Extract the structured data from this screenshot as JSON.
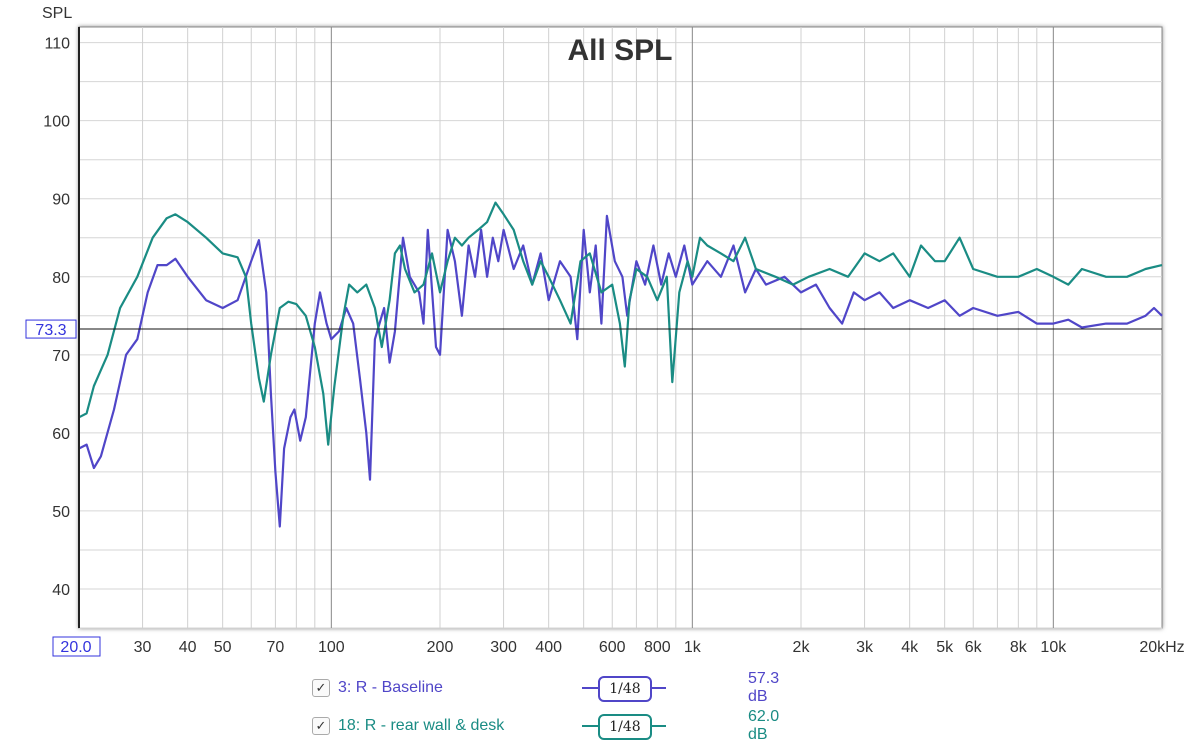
{
  "chart_data": {
    "type": "line",
    "title": "All SPL",
    "ylabel": "SPL",
    "xlabel": "",
    "xscale": "log",
    "xlim": [
      20,
      20000
    ],
    "ylim": [
      35,
      112
    ],
    "grid": true,
    "cursor": {
      "x_readout": "20.0",
      "y_readout": "73.3",
      "y_value": 73.3
    },
    "yticks": [
      40,
      50,
      60,
      70,
      80,
      90,
      100,
      110
    ],
    "xticks": [
      {
        "v": 30,
        "t": "30"
      },
      {
        "v": 40,
        "t": "40"
      },
      {
        "v": 50,
        "t": "50"
      },
      {
        "v": 70,
        "t": "70"
      },
      {
        "v": 100,
        "t": "100"
      },
      {
        "v": 200,
        "t": "200"
      },
      {
        "v": 300,
        "t": "300"
      },
      {
        "v": 400,
        "t": "400"
      },
      {
        "v": 600,
        "t": "600"
      },
      {
        "v": 800,
        "t": "800"
      },
      {
        "v": 1000,
        "t": "1k"
      },
      {
        "v": 2000,
        "t": "2k"
      },
      {
        "v": 3000,
        "t": "3k"
      },
      {
        "v": 4000,
        "t": "4k"
      },
      {
        "v": 5000,
        "t": "5k"
      },
      {
        "v": 6000,
        "t": "6k"
      },
      {
        "v": 8000,
        "t": "8k"
      },
      {
        "v": 10000,
        "t": "10k"
      },
      {
        "v": 20000,
        "t": "20kHz"
      }
    ],
    "series": [
      {
        "name": "3: R - Baseline",
        "color": "#5046c8",
        "smoothing": "1/48",
        "level": "57.3 dB",
        "points": [
          [
            20,
            58
          ],
          [
            21,
            58.5
          ],
          [
            22,
            55.5
          ],
          [
            23,
            57
          ],
          [
            25,
            63
          ],
          [
            27,
            70
          ],
          [
            29,
            72
          ],
          [
            31,
            78
          ],
          [
            33,
            81.5
          ],
          [
            35,
            81.5
          ],
          [
            37,
            82.3
          ],
          [
            40,
            80
          ],
          [
            45,
            77
          ],
          [
            50,
            76
          ],
          [
            55,
            77
          ],
          [
            60,
            82
          ],
          [
            63,
            84.7
          ],
          [
            66,
            78
          ],
          [
            68,
            65
          ],
          [
            70,
            55
          ],
          [
            72,
            48
          ],
          [
            74,
            58
          ],
          [
            77,
            62
          ],
          [
            79,
            63
          ],
          [
            82,
            59
          ],
          [
            85,
            62
          ],
          [
            90,
            74
          ],
          [
            93,
            78
          ],
          [
            97,
            74
          ],
          [
            100,
            72
          ],
          [
            105,
            73
          ],
          [
            110,
            76
          ],
          [
            115,
            74
          ],
          [
            120,
            67
          ],
          [
            125,
            60
          ],
          [
            128,
            54
          ],
          [
            132,
            72
          ],
          [
            140,
            76
          ],
          [
            145,
            69
          ],
          [
            150,
            73
          ],
          [
            158,
            85
          ],
          [
            165,
            80
          ],
          [
            175,
            78
          ],
          [
            180,
            74
          ],
          [
            185,
            86
          ],
          [
            195,
            71
          ],
          [
            200,
            70
          ],
          [
            210,
            86
          ],
          [
            220,
            82
          ],
          [
            230,
            75
          ],
          [
            240,
            84
          ],
          [
            250,
            80
          ],
          [
            260,
            86
          ],
          [
            270,
            80
          ],
          [
            280,
            85
          ],
          [
            290,
            82
          ],
          [
            300,
            86
          ],
          [
            320,
            81
          ],
          [
            340,
            84
          ],
          [
            360,
            79
          ],
          [
            380,
            83
          ],
          [
            400,
            77
          ],
          [
            430,
            82
          ],
          [
            460,
            80
          ],
          [
            480,
            72
          ],
          [
            500,
            86
          ],
          [
            520,
            78
          ],
          [
            540,
            84
          ],
          [
            560,
            74
          ],
          [
            580,
            87.8
          ],
          [
            610,
            82
          ],
          [
            640,
            80
          ],
          [
            660,
            75
          ],
          [
            700,
            82
          ],
          [
            740,
            79
          ],
          [
            780,
            84
          ],
          [
            820,
            79
          ],
          [
            860,
            83
          ],
          [
            900,
            80
          ],
          [
            950,
            84
          ],
          [
            1000,
            79
          ],
          [
            1100,
            82
          ],
          [
            1200,
            80
          ],
          [
            1300,
            84
          ],
          [
            1400,
            78
          ],
          [
            1500,
            81
          ],
          [
            1600,
            79
          ],
          [
            1800,
            80
          ],
          [
            2000,
            78
          ],
          [
            2200,
            79
          ],
          [
            2400,
            76
          ],
          [
            2600,
            74
          ],
          [
            2800,
            78
          ],
          [
            3000,
            77
          ],
          [
            3300,
            78
          ],
          [
            3600,
            76
          ],
          [
            4000,
            77
          ],
          [
            4500,
            76
          ],
          [
            5000,
            77
          ],
          [
            5500,
            75
          ],
          [
            6000,
            76
          ],
          [
            7000,
            75
          ],
          [
            8000,
            75.5
          ],
          [
            9000,
            74
          ],
          [
            10000,
            74
          ],
          [
            11000,
            74.5
          ],
          [
            12000,
            73.5
          ],
          [
            14000,
            74
          ],
          [
            16000,
            74
          ],
          [
            18000,
            75
          ],
          [
            19000,
            76
          ],
          [
            20000,
            75
          ]
        ]
      },
      {
        "name": "18: R - rear wall & desk",
        "color": "#1a8c84",
        "smoothing": "1/48",
        "level": "62.0 dB",
        "points": [
          [
            20,
            62
          ],
          [
            21,
            62.5
          ],
          [
            22,
            66
          ],
          [
            24,
            70
          ],
          [
            26,
            76
          ],
          [
            29,
            80
          ],
          [
            32,
            85
          ],
          [
            35,
            87.5
          ],
          [
            37,
            88
          ],
          [
            40,
            87
          ],
          [
            45,
            85
          ],
          [
            50,
            83
          ],
          [
            55,
            82.5
          ],
          [
            58,
            80
          ],
          [
            60,
            74
          ],
          [
            63,
            67
          ],
          [
            65,
            64
          ],
          [
            68,
            70
          ],
          [
            72,
            76
          ],
          [
            76,
            76.8
          ],
          [
            80,
            76.5
          ],
          [
            85,
            75
          ],
          [
            90,
            71
          ],
          [
            95,
            65
          ],
          [
            98,
            58.5
          ],
          [
            102,
            66
          ],
          [
            108,
            75
          ],
          [
            112,
            79
          ],
          [
            118,
            78
          ],
          [
            125,
            79
          ],
          [
            132,
            76
          ],
          [
            138,
            71
          ],
          [
            145,
            77
          ],
          [
            150,
            83
          ],
          [
            155,
            84
          ],
          [
            160,
            81
          ],
          [
            170,
            78
          ],
          [
            180,
            79
          ],
          [
            190,
            83
          ],
          [
            200,
            78
          ],
          [
            210,
            82
          ],
          [
            220,
            85
          ],
          [
            230,
            84
          ],
          [
            240,
            85
          ],
          [
            255,
            86
          ],
          [
            270,
            87
          ],
          [
            285,
            89.5
          ],
          [
            300,
            88
          ],
          [
            320,
            86
          ],
          [
            340,
            82
          ],
          [
            360,
            79
          ],
          [
            380,
            82
          ],
          [
            400,
            80
          ],
          [
            430,
            77
          ],
          [
            460,
            74
          ],
          [
            490,
            82
          ],
          [
            520,
            83
          ],
          [
            560,
            78
          ],
          [
            600,
            79
          ],
          [
            630,
            74
          ],
          [
            650,
            68.5
          ],
          [
            670,
            77
          ],
          [
            700,
            81
          ],
          [
            750,
            80
          ],
          [
            800,
            77
          ],
          [
            850,
            80
          ],
          [
            880,
            66.5
          ],
          [
            920,
            78
          ],
          [
            970,
            82
          ],
          [
            1000,
            80
          ],
          [
            1050,
            85
          ],
          [
            1100,
            84
          ],
          [
            1200,
            83
          ],
          [
            1300,
            82
          ],
          [
            1400,
            85
          ],
          [
            1500,
            81
          ],
          [
            1700,
            80
          ],
          [
            1900,
            79
          ],
          [
            2100,
            80
          ],
          [
            2400,
            81
          ],
          [
            2700,
            80
          ],
          [
            3000,
            83
          ],
          [
            3300,
            82
          ],
          [
            3600,
            83
          ],
          [
            4000,
            80
          ],
          [
            4300,
            84
          ],
          [
            4700,
            82
          ],
          [
            5000,
            82
          ],
          [
            5500,
            85
          ],
          [
            6000,
            81
          ],
          [
            7000,
            80
          ],
          [
            8000,
            80
          ],
          [
            9000,
            81
          ],
          [
            10000,
            80
          ],
          [
            11000,
            79
          ],
          [
            12000,
            81
          ],
          [
            14000,
            80
          ],
          [
            16000,
            80
          ],
          [
            18000,
            81
          ],
          [
            20000,
            81.5
          ]
        ]
      }
    ]
  }
}
